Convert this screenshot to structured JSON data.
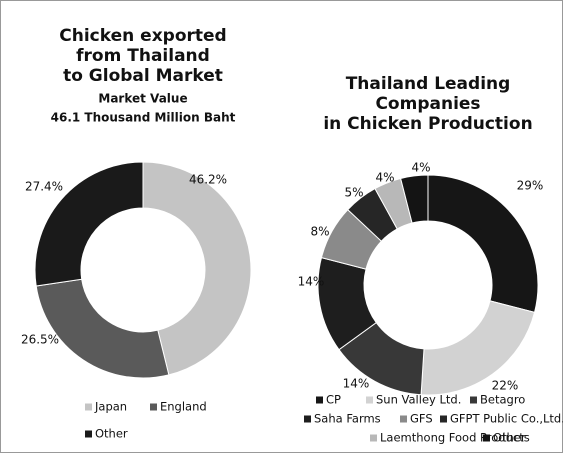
{
  "chart_data": [
    {
      "type": "donut",
      "title": [
        "Chicken exported",
        "from Thailand",
        "to Global Market"
      ],
      "subtitle": [
        "Market Value",
        "46.1 Thousand Million Baht"
      ],
      "categories": [
        "Japan",
        "England",
        "Other"
      ],
      "values": [
        46.2,
        26.5,
        27.4
      ],
      "value_labels": [
        "46.2%",
        "26.5%",
        "27.4%"
      ],
      "colors": [
        "#c4c4c4",
        "#5a5a5a",
        "#1a1a1a"
      ]
    },
    {
      "type": "donut",
      "title": [
        "Thailand Leading",
        "Companies",
        "in Chicken Production"
      ],
      "categories": [
        "CP",
        "Sun Valley Ltd.",
        "Betagro",
        "Saha Farms",
        "GFS",
        "GFPT Public Co.,Ltd.",
        "Laemthong Food Products",
        "Other"
      ],
      "values": [
        29,
        22,
        14,
        14,
        8,
        5,
        4,
        4
      ],
      "value_labels": [
        "29%",
        "22%",
        "14%",
        "14%",
        "8%",
        "5%",
        "4%",
        "4%"
      ],
      "colors": [
        "#161616",
        "#d2d2d2",
        "#383838",
        "#1e1e1e",
        "#8a8a8a",
        "#262626",
        "#b8b8b8",
        "#141414"
      ]
    }
  ]
}
